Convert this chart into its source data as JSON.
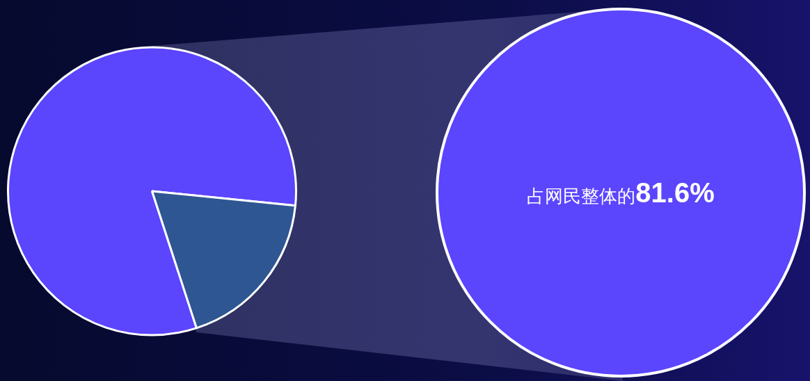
{
  "chart_data": {
    "type": "pie",
    "categories": [
      null,
      null
    ],
    "values": [
      81.6,
      18.4
    ],
    "colors": [
      "#5b45fd",
      "#2e5693"
    ],
    "annotations": [
      "占网民整体的81.6%"
    ]
  }
}
